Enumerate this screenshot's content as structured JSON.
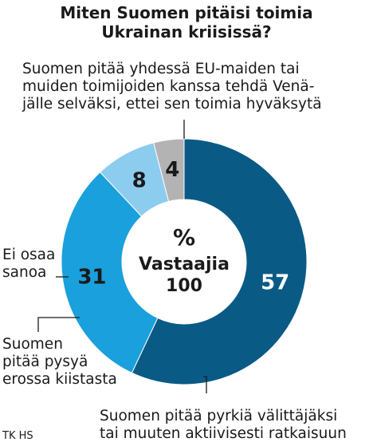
{
  "title_lines": [
    "Miten Suomen pitäisi toimia",
    "Ukrainan kriisissä?"
  ],
  "center": {
    "symbol": "%",
    "label": "Vastaajia",
    "total": "100"
  },
  "slice_labels": {
    "eu": [
      "Suomen pitää yhdessä EU-maiden tai",
      "muiden toimijoiden kanssa tehdä Venä-",
      "jälle selväksi, ettei sen toimia hyväksytä"
    ],
    "mediate": [
      "Suomen pitää pyrkiä välittäjäksi",
      "tai muuten aktiivisesti ratkaisuun"
    ],
    "stay": [
      "Suomen",
      "pitää pysyä",
      "erossa kiistasta"
    ],
    "dontknow": [
      "Ei osaa",
      "sanoa"
    ]
  },
  "credit": "TK HS",
  "chart_data": {
    "type": "pie",
    "style": "donut",
    "categories": [
      "Suomen pitää yhdessä EU-maiden tai muiden toimijoiden kanssa tehdä Venäjälle selväksi, ettei sen toimia hyväksytä",
      "Suomen pitää pyrkiä välittäjäksi tai muuten aktiivisesti ratkaisuun",
      "Suomen pitää pysyä erossa kiistasta",
      "Ei osaa sanoa"
    ],
    "values": [
      57,
      31,
      8,
      4
    ],
    "value_labels": [
      "57",
      "31",
      "8",
      "4"
    ],
    "colors": [
      "#0a5a86",
      "#1aa0dc",
      "#8cccef",
      "#b3b3b3"
    ],
    "value_label_colors": [
      "#ffffff",
      "#1a1a1a",
      "#1a1a1a",
      "#1a1a1a"
    ]
  }
}
